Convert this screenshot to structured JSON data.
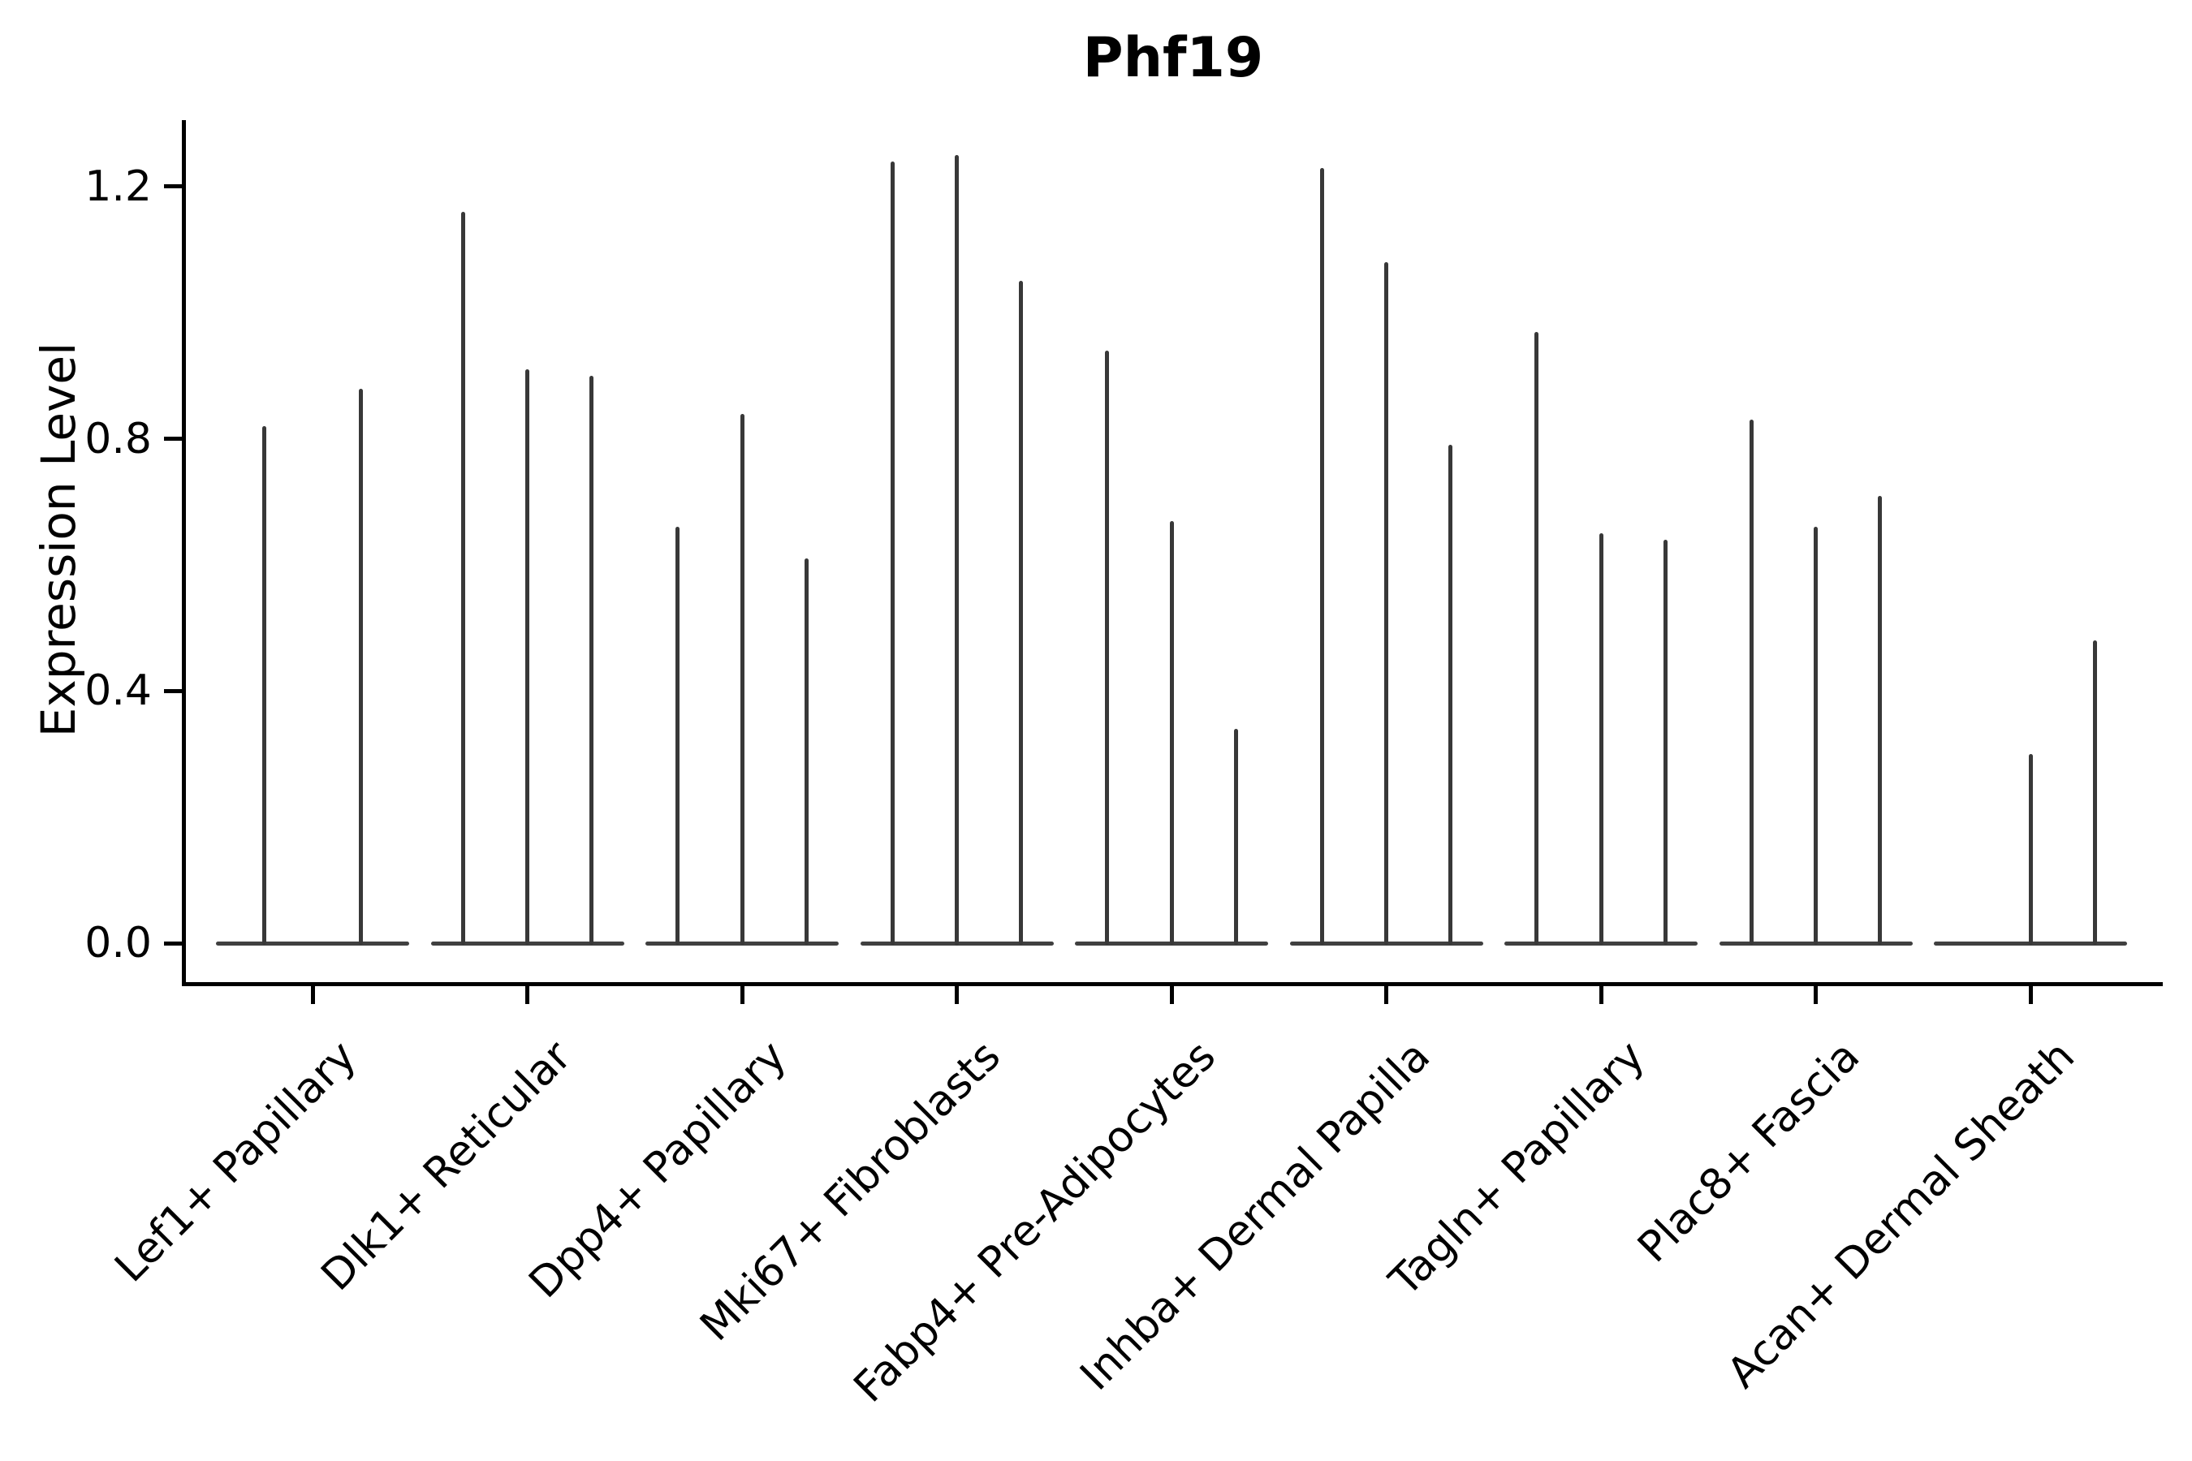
{
  "colors": {
    "background": "#ffffff",
    "axis": "#000000",
    "text": "#000000",
    "violin_spike": "#383838",
    "violin_base": "#404040"
  },
  "chart_data": {
    "type": "violin",
    "title": "Phf19",
    "ylabel": "Expression Level",
    "xlabel": "",
    "grid": false,
    "legend_position": "none",
    "ylim": [
      -0.06,
      1.31
    ],
    "yticks": [
      0.0,
      0.4,
      0.8,
      1.2
    ],
    "ytick_labels": [
      "0.0",
      "0.4",
      "0.8",
      "1.2"
    ],
    "categories": [
      "Lef1+ Papillary",
      "Dlk1+ Reticular",
      "Dpp4+ Papillary",
      "Mki67+ Fibroblasts",
      "Fabp4+ Pre-Adipocytes",
      "Inhba+ Dermal Papilla",
      "Tagln+ Papillary",
      "Plac8+ Fascia",
      "Acan+ Dermal Sheath"
    ],
    "series": [
      {
        "category": "Lef1+ Papillary",
        "violin_maxima": [
          0.82,
          0.88
        ]
      },
      {
        "category": "Dlk1+ Reticular",
        "violin_maxima": [
          1.16,
          0.91,
          0.9
        ]
      },
      {
        "category": "Dpp4+ Papillary",
        "violin_maxima": [
          0.66,
          0.84,
          0.61
        ]
      },
      {
        "category": "Mki67+ Fibroblasts",
        "violin_maxima": [
          1.24,
          1.25,
          1.05
        ]
      },
      {
        "category": "Fabp4+ Pre-Adipocytes",
        "violin_maxima": [
          0.94,
          0.67,
          0.34
        ]
      },
      {
        "category": "Inhba+ Dermal Papilla",
        "violin_maxima": [
          1.23,
          1.08,
          0.79
        ]
      },
      {
        "category": "Tagln+ Papillary",
        "violin_maxima": [
          0.97,
          0.65,
          0.64
        ]
      },
      {
        "category": "Plac8+ Fascia",
        "violin_maxima": [
          0.83,
          0.66,
          0.71
        ]
      },
      {
        "category": "Acan+ Dermal Sheath",
        "violin_maxima": [
          0,
          0.3,
          0.48
        ]
      }
    ]
  }
}
